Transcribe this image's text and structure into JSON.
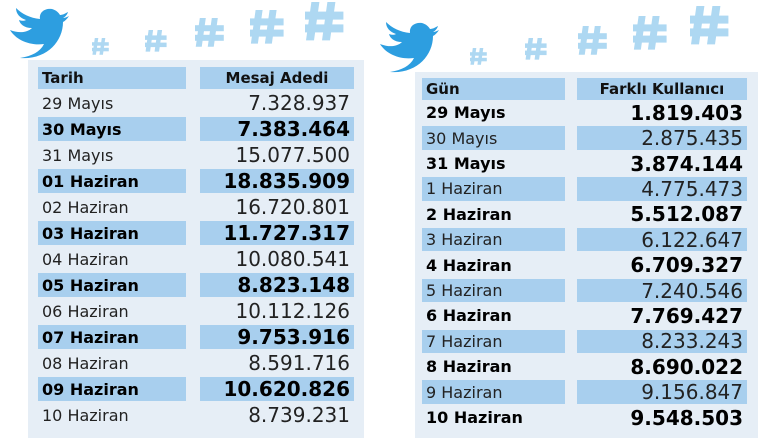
{
  "tables": [
    {
      "header": [
        "Tarih",
        "Mesaj Adedi"
      ],
      "rows": [
        [
          "29 Mayıs",
          "7.328.937"
        ],
        [
          "30 Mayıs",
          "7.383.464"
        ],
        [
          "31 Mayıs",
          "15.077.500"
        ],
        [
          "01 Haziran",
          "18.835.909"
        ],
        [
          "02 Haziran",
          "16.720.801"
        ],
        [
          "03 Haziran",
          "11.727.317"
        ],
        [
          "04 Haziran",
          "10.080.541"
        ],
        [
          "05 Haziran",
          "8.823.148"
        ],
        [
          "06 Haziran",
          "10.112.126"
        ],
        [
          "07 Haziran",
          "9.753.916"
        ],
        [
          "08 Haziran",
          "8.591.716"
        ],
        [
          "09 Haziran",
          "10.620.826"
        ],
        [
          "10 Haziran",
          "8.739.231"
        ]
      ]
    },
    {
      "header": [
        "Gün",
        "Farklı Kullanıcı"
      ],
      "rows": [
        [
          "29 Mayıs",
          "1.819.403"
        ],
        [
          "30 Mayıs",
          "2.875.435"
        ],
        [
          "31 Mayıs",
          "3.874.144"
        ],
        [
          "1 Haziran",
          "4.775.473"
        ],
        [
          "2 Haziran",
          "5.512.087"
        ],
        [
          "3 Haziran",
          "6.122.647"
        ],
        [
          "4 Haziran",
          "6.709.327"
        ],
        [
          "5 Haziran",
          "7.240.546"
        ],
        [
          "6 Haziran",
          "7.769.427"
        ],
        [
          "7 Haziran",
          "8.233.243"
        ],
        [
          "8 Haziran",
          "8.690.022"
        ],
        [
          "9 Haziran",
          "9.156.847"
        ],
        [
          "10 Haziran",
          "9.548.503"
        ]
      ]
    }
  ]
}
